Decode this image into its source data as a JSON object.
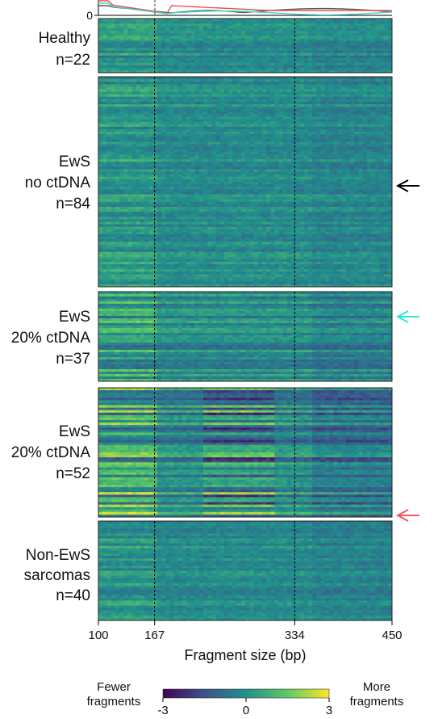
{
  "chart_data": {
    "type": "heatmap",
    "xlabel": "Fragment size (bp)",
    "x_range": [
      100,
      450
    ],
    "x_ticks": [
      100,
      167,
      334,
      450
    ],
    "reference_lines": [
      167,
      334
    ],
    "top_axis_tick": "0",
    "colorbar": {
      "min": -3,
      "max": 3,
      "ticks": [
        "-3",
        "0",
        "3"
      ],
      "low_label": [
        "Fewer",
        "fragments"
      ],
      "high_label": [
        "More",
        "fragments"
      ],
      "colors": [
        "#440154",
        "#3b528b",
        "#21918c",
        "#5ec962",
        "#fde725"
      ]
    },
    "top_density_lines": [
      {
        "color": "#555555"
      },
      {
        "color": "#e8514f"
      },
      {
        "color": "#3fd8c4"
      }
    ],
    "panels": [
      {
        "label": [
          "Healthy",
          "n=22"
        ],
        "n": 22
      },
      {
        "label": [
          "EwS",
          "no ctDNA",
          "n=84"
        ],
        "n": 84,
        "arrow_color": "#000000"
      },
      {
        "label": [
          "EwS",
          "20% ctDNA",
          "n=37"
        ],
        "n": 37,
        "arrow_color": "#2ee6d6"
      },
      {
        "label": [
          "EwS",
          "20% ctDNA",
          "n=52"
        ],
        "n": 52,
        "arrow_color": "#f0595d"
      },
      {
        "label": [
          "Non-EwS",
          "sarcomas",
          "n=40"
        ],
        "n": 40
      }
    ]
  }
}
